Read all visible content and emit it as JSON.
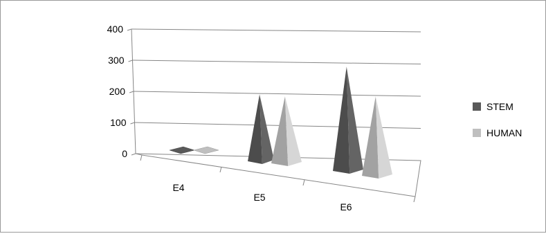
{
  "chart_data": {
    "type": "bar",
    "subtype": "3d-pyramid",
    "title": "",
    "xlabel": "",
    "ylabel": "",
    "categories": [
      "E4",
      "E5",
      "E6"
    ],
    "ylim": [
      0,
      400
    ],
    "yticks": [
      0,
      100,
      200,
      300,
      400
    ],
    "ytick_labels": [
      "0",
      "100",
      "200",
      "300",
      "400"
    ],
    "grid": true,
    "legend_position": "right",
    "series": [
      {
        "name": "STEM",
        "values": [
          5,
          215,
          335
        ],
        "color": "#595959"
      },
      {
        "name": "HUMAN",
        "values": [
          5,
          215,
          255
        ],
        "color": "#bfbfbf"
      }
    ]
  }
}
